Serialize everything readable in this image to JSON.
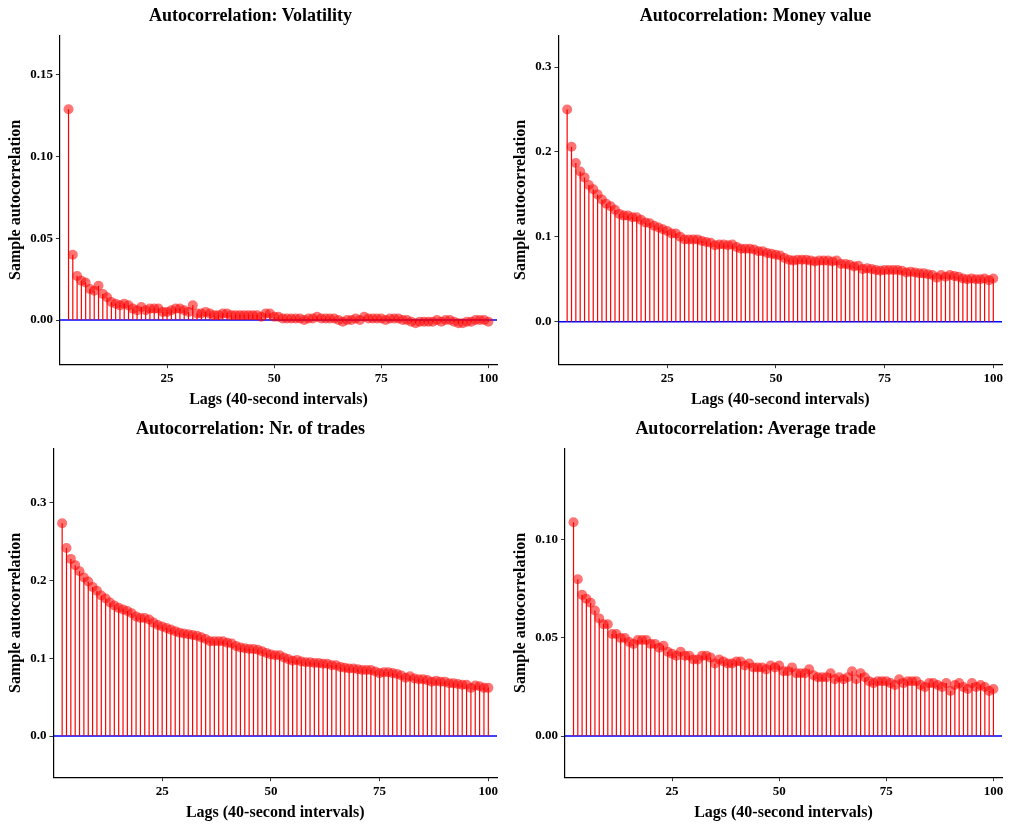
{
  "chart_data": [
    {
      "type": "lollipop",
      "title": "Autocorrelation: Volatility",
      "xlabel": "Lags (40-second intervals)",
      "ylabel": "Sample autocorrelation",
      "marker": "circle",
      "xlim": [
        0,
        102
      ],
      "xticks": [
        25,
        50,
        75,
        100
      ],
      "ylim": [
        -0.027,
        0.174
      ],
      "yticks": [
        {
          "value": 0,
          "label": "0.00"
        },
        {
          "value": 0.05,
          "label": "0.05"
        },
        {
          "value": 0.1,
          "label": "0.10"
        },
        {
          "value": 0.15,
          "label": "0.15"
        }
      ],
      "ref_lines": [
        {
          "axis": "y",
          "value": 0,
          "color": "#0000ff"
        }
      ],
      "series": [
        {
          "color": "#ff0000",
          "x": [
            2,
            3,
            4,
            5,
            6,
            7,
            8,
            9,
            10,
            11,
            12,
            13,
            14,
            15,
            16,
            17,
            18,
            19,
            20,
            21,
            22,
            23,
            24,
            25,
            26,
            27,
            28,
            29,
            30,
            31,
            32,
            33,
            34,
            35,
            36,
            37,
            38,
            39,
            40,
            41,
            42,
            43,
            44,
            45,
            46,
            47,
            48,
            49,
            50,
            51,
            52,
            53,
            54,
            55,
            56,
            57,
            58,
            59,
            60,
            61,
            62,
            63,
            64,
            65,
            66,
            67,
            68,
            69,
            70,
            71,
            72,
            73,
            74,
            75,
            76,
            77,
            78,
            79,
            80,
            81,
            82,
            83,
            84,
            85,
            86,
            87,
            88,
            89,
            90,
            91,
            92,
            93,
            94,
            95,
            96,
            97,
            98,
            99,
            100
          ],
          "values": [
            0.129,
            0.04,
            0.027,
            0.024,
            0.023,
            0.019,
            0.018,
            0.021,
            0.016,
            0.014,
            0.011,
            0.01,
            0.009,
            0.01,
            0.009,
            0.007,
            0.006,
            0.008,
            0.006,
            0.007,
            0.007,
            0.007,
            0.005,
            0.005,
            0.006,
            0.007,
            0.007,
            0.006,
            0.005,
            0.009,
            0.004,
            0.004,
            0.005,
            0.004,
            0.003,
            0.003,
            0.004,
            0.004,
            0.003,
            0.003,
            0.003,
            0.003,
            0.003,
            0.003,
            0.003,
            0.002,
            0.004,
            0.004,
            0.002,
            0.002,
            0.001,
            0.001,
            0.001,
            0.001,
            0.001,
            0.0,
            0.001,
            0.001,
            0.002,
            0.001,
            0.001,
            0.001,
            0.001,
            0.0,
            -0.001,
            0.0,
            0.0,
            0.001,
            0.0,
            0.002,
            0.001,
            0.001,
            0.001,
            0.001,
            0.0,
            0.001,
            0.001,
            0.001,
            0.0,
            0.0,
            -0.001,
            -0.002,
            -0.001,
            -0.001,
            -0.001,
            -0.001,
            0.0,
            -0.001,
            0.0,
            0.0,
            -0.001,
            -0.002,
            -0.002,
            -0.001,
            -0.001,
            0.0,
            0.0,
            0.0,
            -0.001
          ]
        }
      ]
    },
    {
      "type": "lollipop",
      "title": "Autocorrelation: Money value",
      "xlabel": "Lags (40-second intervals)",
      "ylabel": "Sample autocorrelation",
      "marker": "circle",
      "xlim": [
        0,
        102
      ],
      "xticks": [
        25,
        50,
        75,
        100
      ],
      "ylim": [
        -0.05,
        0.337
      ],
      "yticks": [
        {
          "value": 0,
          "label": "0.0"
        },
        {
          "value": 0.1,
          "label": "0.1"
        },
        {
          "value": 0.2,
          "label": "0.2"
        },
        {
          "value": 0.3,
          "label": "0.3"
        }
      ],
      "ref_lines": [
        {
          "axis": "y",
          "value": 0,
          "color": "#0000ff"
        }
      ],
      "series": [
        {
          "color": "#ff0000",
          "x": [
            2,
            3,
            4,
            5,
            6,
            7,
            8,
            9,
            10,
            11,
            12,
            13,
            14,
            15,
            16,
            17,
            18,
            19,
            20,
            21,
            22,
            23,
            24,
            25,
            26,
            27,
            28,
            29,
            30,
            31,
            32,
            33,
            34,
            35,
            36,
            37,
            38,
            39,
            40,
            41,
            42,
            43,
            44,
            45,
            46,
            47,
            48,
            49,
            50,
            51,
            52,
            53,
            54,
            55,
            56,
            57,
            58,
            59,
            60,
            61,
            62,
            63,
            64,
            65,
            66,
            67,
            68,
            69,
            70,
            71,
            72,
            73,
            74,
            75,
            76,
            77,
            78,
            79,
            80,
            81,
            82,
            83,
            84,
            85,
            86,
            87,
            88,
            89,
            90,
            91,
            92,
            93,
            94,
            95,
            96,
            97,
            98,
            99,
            100
          ],
          "values": [
            0.25,
            0.206,
            0.187,
            0.177,
            0.17,
            0.161,
            0.156,
            0.15,
            0.144,
            0.139,
            0.136,
            0.132,
            0.127,
            0.125,
            0.125,
            0.123,
            0.123,
            0.12,
            0.117,
            0.116,
            0.113,
            0.111,
            0.109,
            0.107,
            0.104,
            0.104,
            0.1,
            0.097,
            0.097,
            0.097,
            0.097,
            0.095,
            0.094,
            0.093,
            0.09,
            0.091,
            0.091,
            0.09,
            0.091,
            0.088,
            0.086,
            0.086,
            0.086,
            0.085,
            0.083,
            0.083,
            0.081,
            0.08,
            0.079,
            0.078,
            0.075,
            0.073,
            0.072,
            0.073,
            0.073,
            0.073,
            0.072,
            0.071,
            0.072,
            0.072,
            0.072,
            0.071,
            0.072,
            0.068,
            0.068,
            0.067,
            0.065,
            0.066,
            0.062,
            0.063,
            0.062,
            0.061,
            0.06,
            0.061,
            0.061,
            0.061,
            0.061,
            0.06,
            0.058,
            0.059,
            0.058,
            0.057,
            0.057,
            0.056,
            0.055,
            0.052,
            0.055,
            0.053,
            0.055,
            0.054,
            0.053,
            0.051,
            0.05,
            0.051,
            0.05,
            0.05,
            0.051,
            0.049,
            0.051
          ]
        }
      ]
    },
    {
      "type": "lollipop",
      "title": "Autocorrelation: Nr. of trades",
      "xlabel": "Lags (40-second intervals)",
      "ylabel": "Sample autocorrelation",
      "marker": "circle",
      "xlim": [
        0,
        102
      ],
      "xticks": [
        25,
        50,
        75,
        100
      ],
      "ylim": [
        -0.053,
        0.37
      ],
      "yticks": [
        {
          "value": 0,
          "label": "0.0"
        },
        {
          "value": 0.1,
          "label": "0.1"
        },
        {
          "value": 0.2,
          "label": "0.2"
        },
        {
          "value": 0.3,
          "label": "0.3"
        }
      ],
      "ref_lines": [
        {
          "axis": "y",
          "value": 0,
          "color": "#0000ff"
        }
      ],
      "series": [
        {
          "color": "#ff0000",
          "x": [
            2,
            3,
            4,
            5,
            6,
            7,
            8,
            9,
            10,
            11,
            12,
            13,
            14,
            15,
            16,
            17,
            18,
            19,
            20,
            21,
            22,
            23,
            24,
            25,
            26,
            27,
            28,
            29,
            30,
            31,
            32,
            33,
            34,
            35,
            36,
            37,
            38,
            39,
            40,
            41,
            42,
            43,
            44,
            45,
            46,
            47,
            48,
            49,
            50,
            51,
            52,
            53,
            54,
            55,
            56,
            57,
            58,
            59,
            60,
            61,
            62,
            63,
            64,
            65,
            66,
            67,
            68,
            69,
            70,
            71,
            72,
            73,
            74,
            75,
            76,
            77,
            78,
            79,
            80,
            81,
            82,
            83,
            84,
            85,
            86,
            87,
            88,
            89,
            90,
            91,
            92,
            93,
            94,
            95,
            96,
            97,
            98,
            99,
            100
          ],
          "values": [
            0.274,
            0.242,
            0.228,
            0.22,
            0.212,
            0.204,
            0.199,
            0.192,
            0.187,
            0.181,
            0.177,
            0.172,
            0.168,
            0.165,
            0.163,
            0.161,
            0.158,
            0.154,
            0.152,
            0.152,
            0.15,
            0.146,
            0.143,
            0.141,
            0.139,
            0.137,
            0.135,
            0.133,
            0.132,
            0.131,
            0.13,
            0.129,
            0.127,
            0.125,
            0.122,
            0.122,
            0.122,
            0.122,
            0.12,
            0.119,
            0.116,
            0.114,
            0.113,
            0.112,
            0.112,
            0.111,
            0.109,
            0.107,
            0.105,
            0.104,
            0.104,
            0.101,
            0.099,
            0.097,
            0.098,
            0.096,
            0.095,
            0.095,
            0.094,
            0.094,
            0.093,
            0.093,
            0.091,
            0.091,
            0.089,
            0.088,
            0.087,
            0.087,
            0.086,
            0.085,
            0.085,
            0.085,
            0.083,
            0.081,
            0.082,
            0.082,
            0.081,
            0.08,
            0.078,
            0.075,
            0.077,
            0.074,
            0.073,
            0.073,
            0.072,
            0.07,
            0.071,
            0.07,
            0.07,
            0.068,
            0.068,
            0.067,
            0.066,
            0.066,
            0.062,
            0.065,
            0.064,
            0.062,
            0.062
          ]
        }
      ]
    },
    {
      "type": "lollipop",
      "title": "Autocorrelation: Average trade",
      "xlabel": "Lags (40-second intervals)",
      "ylabel": "Sample autocorrelation",
      "marker": "circle",
      "xlim": [
        0,
        102
      ],
      "xticks": [
        25,
        50,
        75,
        100
      ],
      "ylim": [
        -0.021,
        0.1466
      ],
      "yticks": [
        {
          "value": 0,
          "label": "0.00"
        },
        {
          "value": 0.05,
          "label": "0.05"
        },
        {
          "value": 0.1,
          "label": "0.10"
        }
      ],
      "ref_lines": [
        {
          "axis": "y",
          "value": 0,
          "color": "#0000ff"
        }
      ],
      "series": [
        {
          "color": "#ff0000",
          "x": [
            2,
            3,
            4,
            5,
            6,
            7,
            8,
            9,
            10,
            11,
            12,
            13,
            14,
            15,
            16,
            17,
            18,
            19,
            20,
            21,
            22,
            23,
            24,
            25,
            26,
            27,
            28,
            29,
            30,
            31,
            32,
            33,
            34,
            35,
            36,
            37,
            38,
            39,
            40,
            41,
            42,
            43,
            44,
            45,
            46,
            47,
            48,
            49,
            50,
            51,
            52,
            53,
            54,
            55,
            56,
            57,
            58,
            59,
            60,
            61,
            62,
            63,
            64,
            65,
            66,
            67,
            68,
            69,
            70,
            71,
            72,
            73,
            74,
            75,
            76,
            77,
            78,
            79,
            80,
            81,
            82,
            83,
            84,
            85,
            86,
            87,
            88,
            89,
            90,
            91,
            92,
            93,
            94,
            95,
            96,
            97,
            98,
            99,
            100
          ],
          "values": [
            0.109,
            0.08,
            0.072,
            0.07,
            0.068,
            0.064,
            0.06,
            0.057,
            0.057,
            0.052,
            0.052,
            0.05,
            0.05,
            0.048,
            0.047,
            0.049,
            0.049,
            0.049,
            0.047,
            0.047,
            0.045,
            0.046,
            0.043,
            0.042,
            0.041,
            0.043,
            0.041,
            0.041,
            0.039,
            0.039,
            0.041,
            0.041,
            0.04,
            0.037,
            0.039,
            0.038,
            0.037,
            0.037,
            0.038,
            0.038,
            0.036,
            0.037,
            0.035,
            0.035,
            0.035,
            0.034,
            0.036,
            0.035,
            0.036,
            0.033,
            0.033,
            0.035,
            0.032,
            0.032,
            0.032,
            0.034,
            0.031,
            0.03,
            0.03,
            0.03,
            0.032,
            0.029,
            0.03,
            0.029,
            0.03,
            0.033,
            0.029,
            0.032,
            0.03,
            0.028,
            0.027,
            0.028,
            0.028,
            0.028,
            0.027,
            0.026,
            0.029,
            0.027,
            0.028,
            0.028,
            0.028,
            0.026,
            0.025,
            0.027,
            0.027,
            0.026,
            0.025,
            0.027,
            0.023,
            0.026,
            0.027,
            0.025,
            0.024,
            0.027,
            0.025,
            0.026,
            0.025,
            0.023,
            0.024
          ]
        }
      ]
    }
  ]
}
